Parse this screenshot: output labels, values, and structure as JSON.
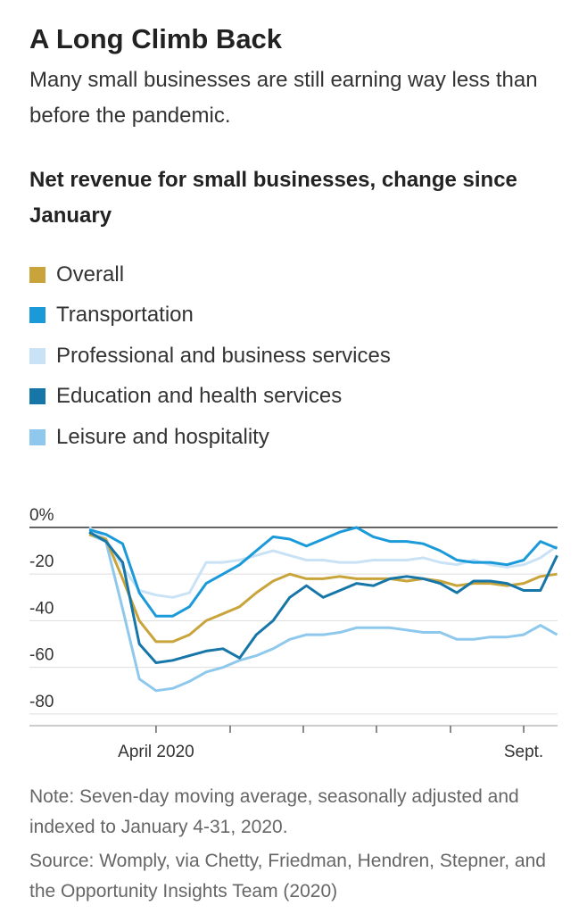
{
  "title": "A Long Climb Back",
  "subtitle": "Many small businesses are still earning way less than before the pandemic.",
  "chart_data": {
    "type": "line",
    "title": "Net revenue for small businesses, change since January",
    "categories": [
      null,
      null,
      null,
      null,
      "April 2020",
      null,
      null,
      null,
      null,
      null,
      null,
      null,
      null,
      null,
      null,
      null,
      null,
      null,
      null,
      null,
      null,
      null,
      null,
      null,
      null,
      null,
      "Sept.",
      null,
      null
    ],
    "series": [
      {
        "name": "Overall",
        "color": "#c8a43a",
        "values": [
          -3,
          -5,
          -22,
          -40,
          -49,
          -49,
          -46,
          -40,
          -37,
          -34,
          -28,
          -23,
          -20,
          -22,
          -22,
          -21,
          -22,
          -22,
          -22,
          -23,
          -22,
          -23,
          -25,
          -24,
          -24,
          -25,
          -24,
          -21,
          -20
        ]
      },
      {
        "name": "Transportation",
        "color": "#1a9ad9",
        "values": [
          -1,
          -3,
          -7,
          -28,
          -38,
          -38,
          -34,
          -24,
          -20,
          -16,
          -10,
          -4,
          -5,
          -8,
          -5,
          -2,
          0,
          -4,
          -6,
          -6,
          -7,
          -10,
          -14,
          -15,
          -15,
          -16,
          -14,
          -6,
          -9
        ]
      },
      {
        "name": "Professional and business services",
        "color": "#c9e2f5",
        "values": [
          0,
          -5,
          -17,
          -27,
          -29,
          -30,
          -28,
          -15,
          -15,
          -14,
          -12,
          -10,
          -12,
          -14,
          -14,
          -15,
          -15,
          -14,
          -14,
          -14,
          -13,
          -15,
          -16,
          -14,
          -16,
          -17,
          -16,
          -13,
          -8
        ]
      },
      {
        "name": "Education and health services",
        "color": "#1676a8",
        "values": [
          -2,
          -6,
          -15,
          -50,
          -58,
          -57,
          -55,
          -53,
          -52,
          -56,
          -46,
          -40,
          -30,
          -25,
          -30,
          -27,
          -24,
          -25,
          -22,
          -21,
          -22,
          -24,
          -28,
          -23,
          -23,
          -24,
          -27,
          -27,
          -12
        ]
      },
      {
        "name": "Leisure and hospitality",
        "color": "#8ec8ec",
        "values": [
          -3,
          -6,
          -35,
          -65,
          -70,
          -69,
          -66,
          -62,
          -60,
          -57,
          -55,
          -52,
          -48,
          -46,
          -46,
          -45,
          -43,
          -43,
          -43,
          -44,
          -45,
          -45,
          -48,
          -48,
          -47,
          -47,
          -46,
          -42,
          -46
        ]
      }
    ],
    "ylim": [
      -85,
      8
    ],
    "yticks": [
      {
        "value": 0,
        "label": "0%"
      },
      -20,
      -40,
      -60,
      -80
    ],
    "grid": true
  },
  "note": "Note: Seven-day moving average, seasonally adjusted and indexed to January 4-31, 2020.",
  "source": "Source: Womply, via Chetty, Friedman, Hendren, Stepner, and the Opportunity Insights Team (2020)"
}
